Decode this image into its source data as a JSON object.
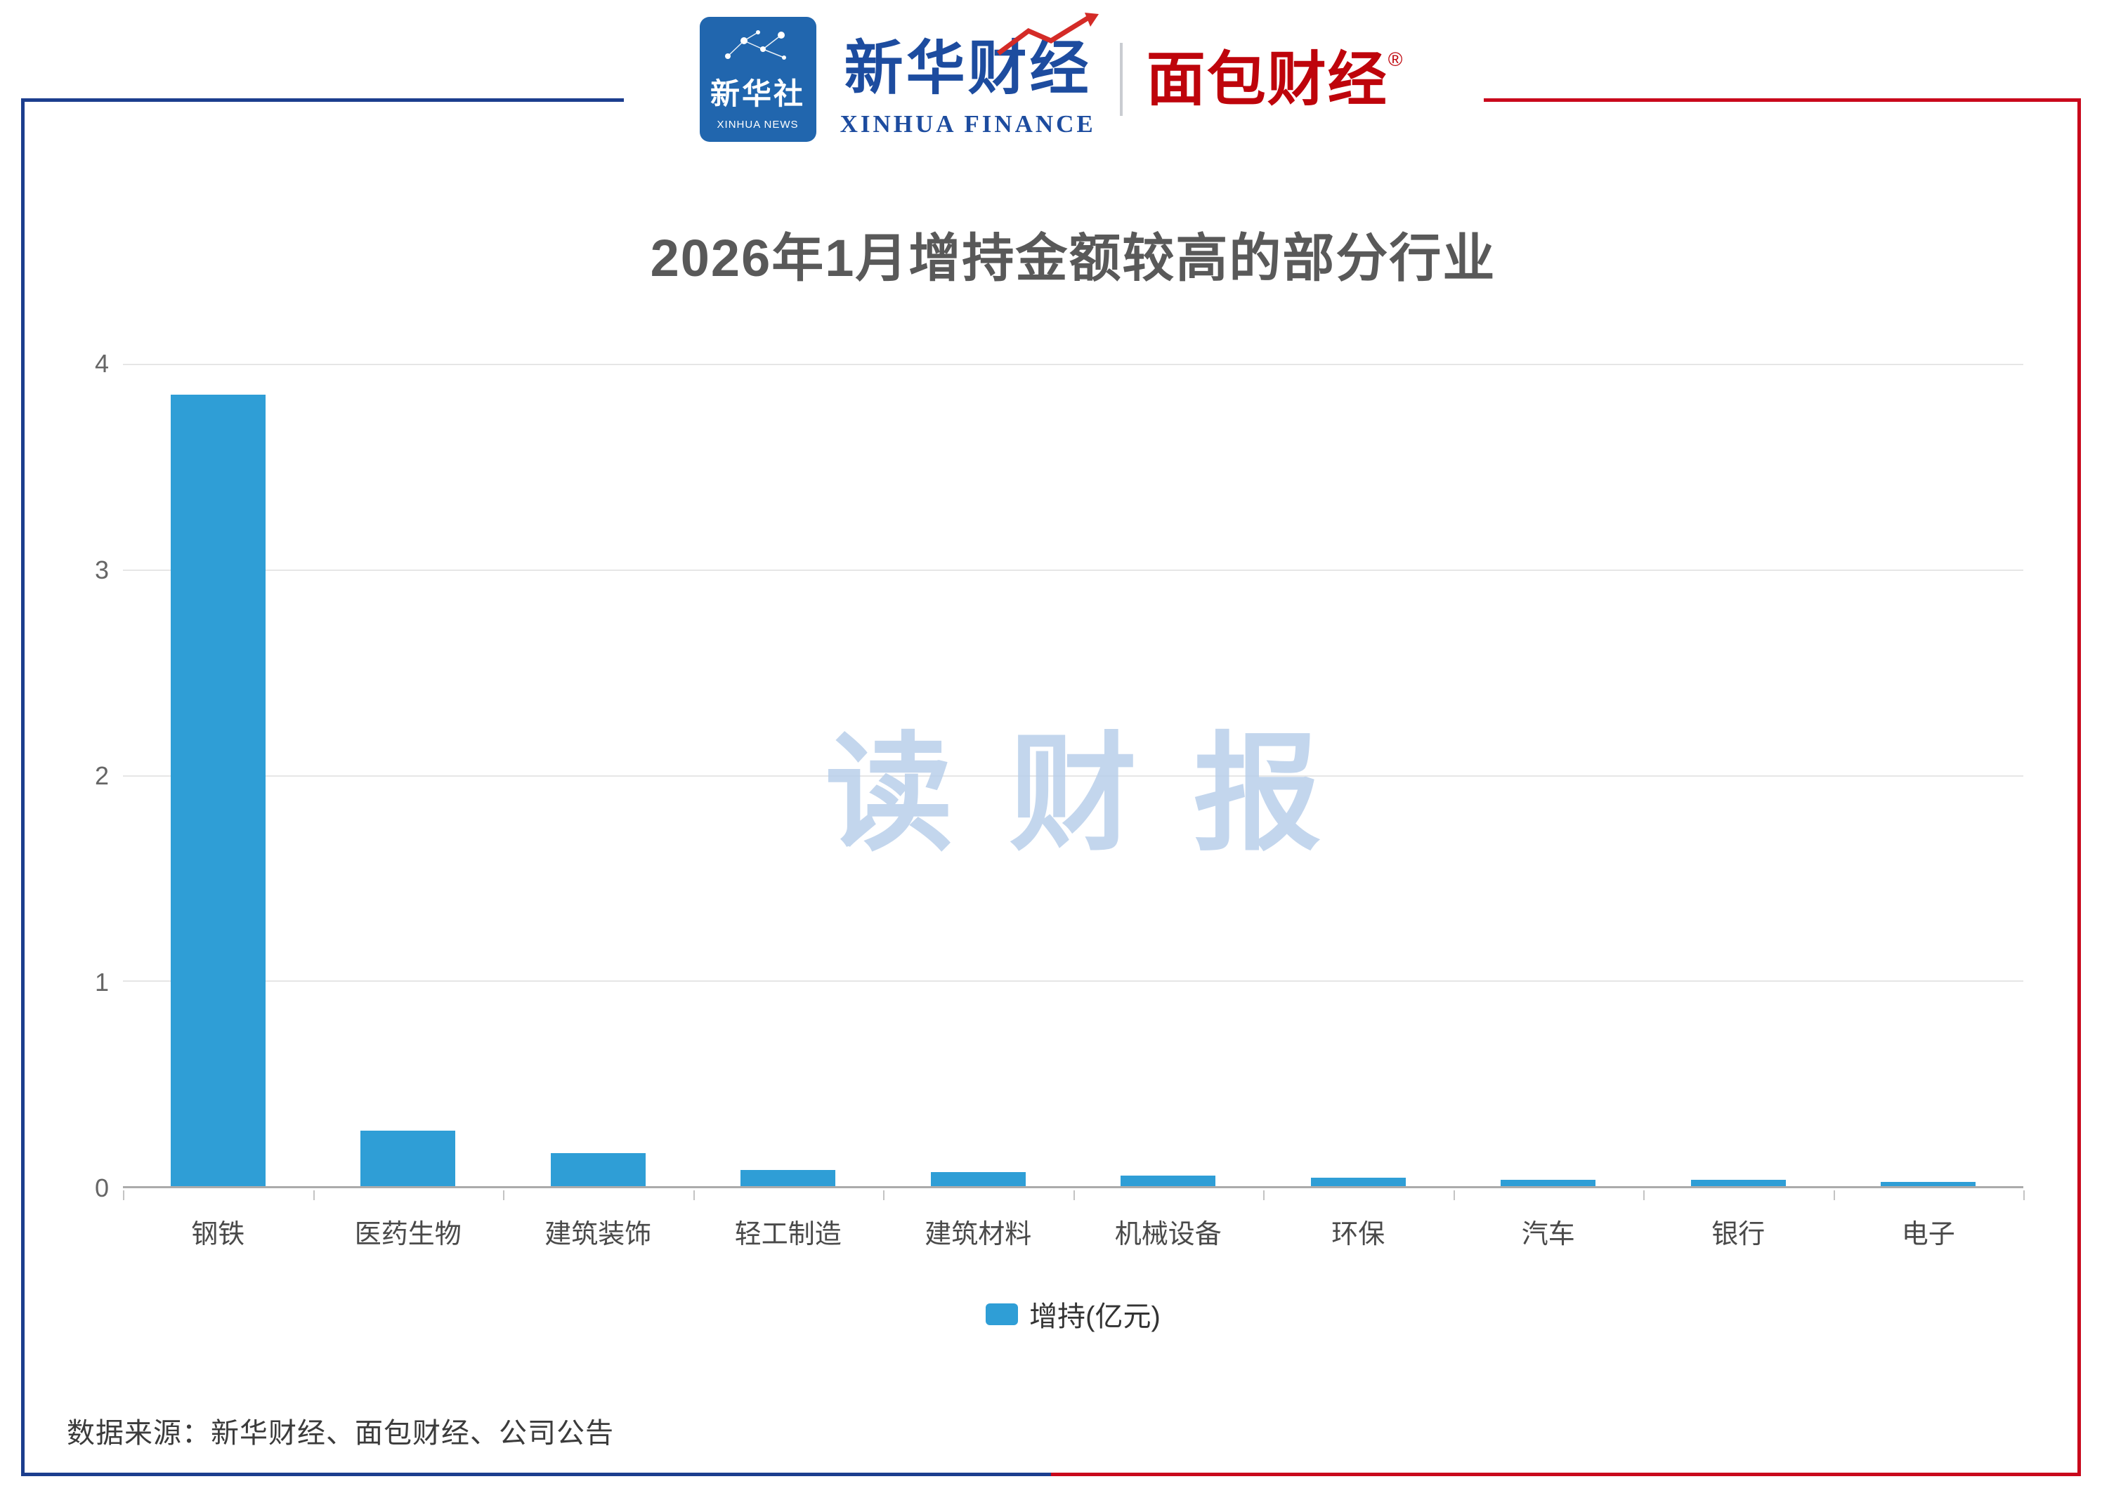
{
  "header": {
    "xinhua_news": {
      "cn": "新华社",
      "en": "XINHUA NEWS"
    },
    "xinhua_finance": {
      "cn": "新华财经",
      "en": "XINHUA FINANCE"
    },
    "bread_finance": {
      "cn": "面包财经",
      "reg": "®"
    }
  },
  "chart_data": {
    "type": "bar",
    "title": "2026年1月增持金额较高的部分行业",
    "categories": [
      "钢铁",
      "医药生物",
      "建筑装饰",
      "轻工制造",
      "建筑材料",
      "机械设备",
      "环保",
      "汽车",
      "银行",
      "电子"
    ],
    "series": [
      {
        "name": "增持(亿元)",
        "values": [
          3.85,
          0.27,
          0.16,
          0.08,
          0.07,
          0.05,
          0.04,
          0.03,
          0.03,
          0.02
        ]
      }
    ],
    "ylim": [
      0,
      4
    ],
    "yticks": [
      0,
      1,
      2,
      3,
      4
    ],
    "grid": true,
    "legend_position": "bottom",
    "bar_color": "#2F9ED6",
    "watermark": "读财报"
  },
  "footer": {
    "source": "数据来源：新华财经、面包财经、公司公告"
  },
  "colors": {
    "frame_blue": "#1C3E8E",
    "frame_red": "#C9081C",
    "logo_badge_blue": "#2166AE",
    "logo_text_blue": "#1D4C9F",
    "logo_text_red": "#BE040B",
    "bar": "#2F9ED6",
    "title_text": "#595959",
    "gridline": "#E6E6E6",
    "axis_line": "#ABABAB",
    "watermark": "#B9CFEA"
  }
}
